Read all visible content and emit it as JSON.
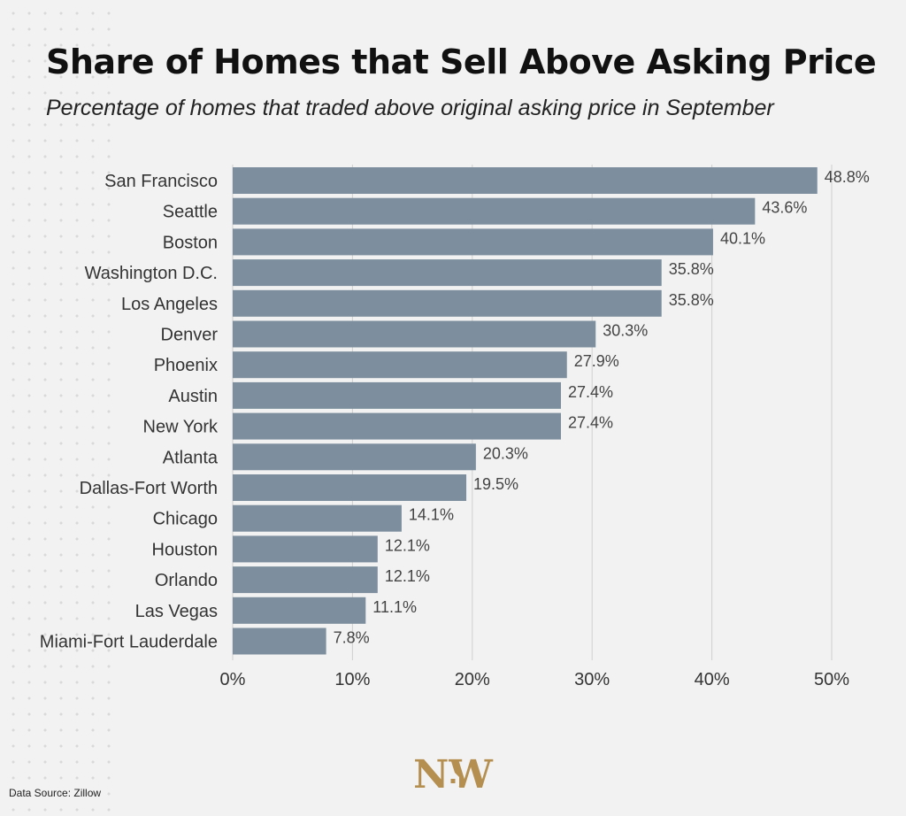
{
  "title": "Share of Homes that Sell Above Asking Price",
  "subtitle": "Percentage of homes that traded above original asking price in September",
  "source": "Data Source: Zillow",
  "logo": "NW",
  "colors": {
    "bar": "#7d8f9e",
    "grid": "#cfcfcf",
    "background": "#f2f2f2",
    "logo": "#b58f4f"
  },
  "chart_data": {
    "type": "bar",
    "orientation": "horizontal",
    "categories": [
      "San Francisco",
      "Seattle",
      "Boston",
      "Washington D.C.",
      "Los Angeles",
      "Denver",
      "Phoenix",
      "Austin",
      "New York",
      "Atlanta",
      "Dallas-Fort Worth",
      "Chicago",
      "Houston",
      "Orlando",
      "Las Vegas",
      "Miami-Fort Lauderdale"
    ],
    "values": [
      48.8,
      43.6,
      40.1,
      35.8,
      35.8,
      30.3,
      27.9,
      27.4,
      27.4,
      20.3,
      19.5,
      14.1,
      12.1,
      12.1,
      11.1,
      7.8
    ],
    "value_labels": [
      "48.8%",
      "43.6%",
      "40.1%",
      "35.8%",
      "35.8%",
      "30.3%",
      "27.9%",
      "27.4%",
      "27.4%",
      "20.3%",
      "19.5%",
      "14.1%",
      "12.1%",
      "12.1%",
      "11.1%",
      "7.8%"
    ],
    "xlim": [
      0,
      50
    ],
    "xticks": [
      0,
      10,
      20,
      30,
      40,
      50
    ],
    "xtick_labels": [
      "0%",
      "10%",
      "20%",
      "30%",
      "40%",
      "50%"
    ],
    "grid": true
  }
}
